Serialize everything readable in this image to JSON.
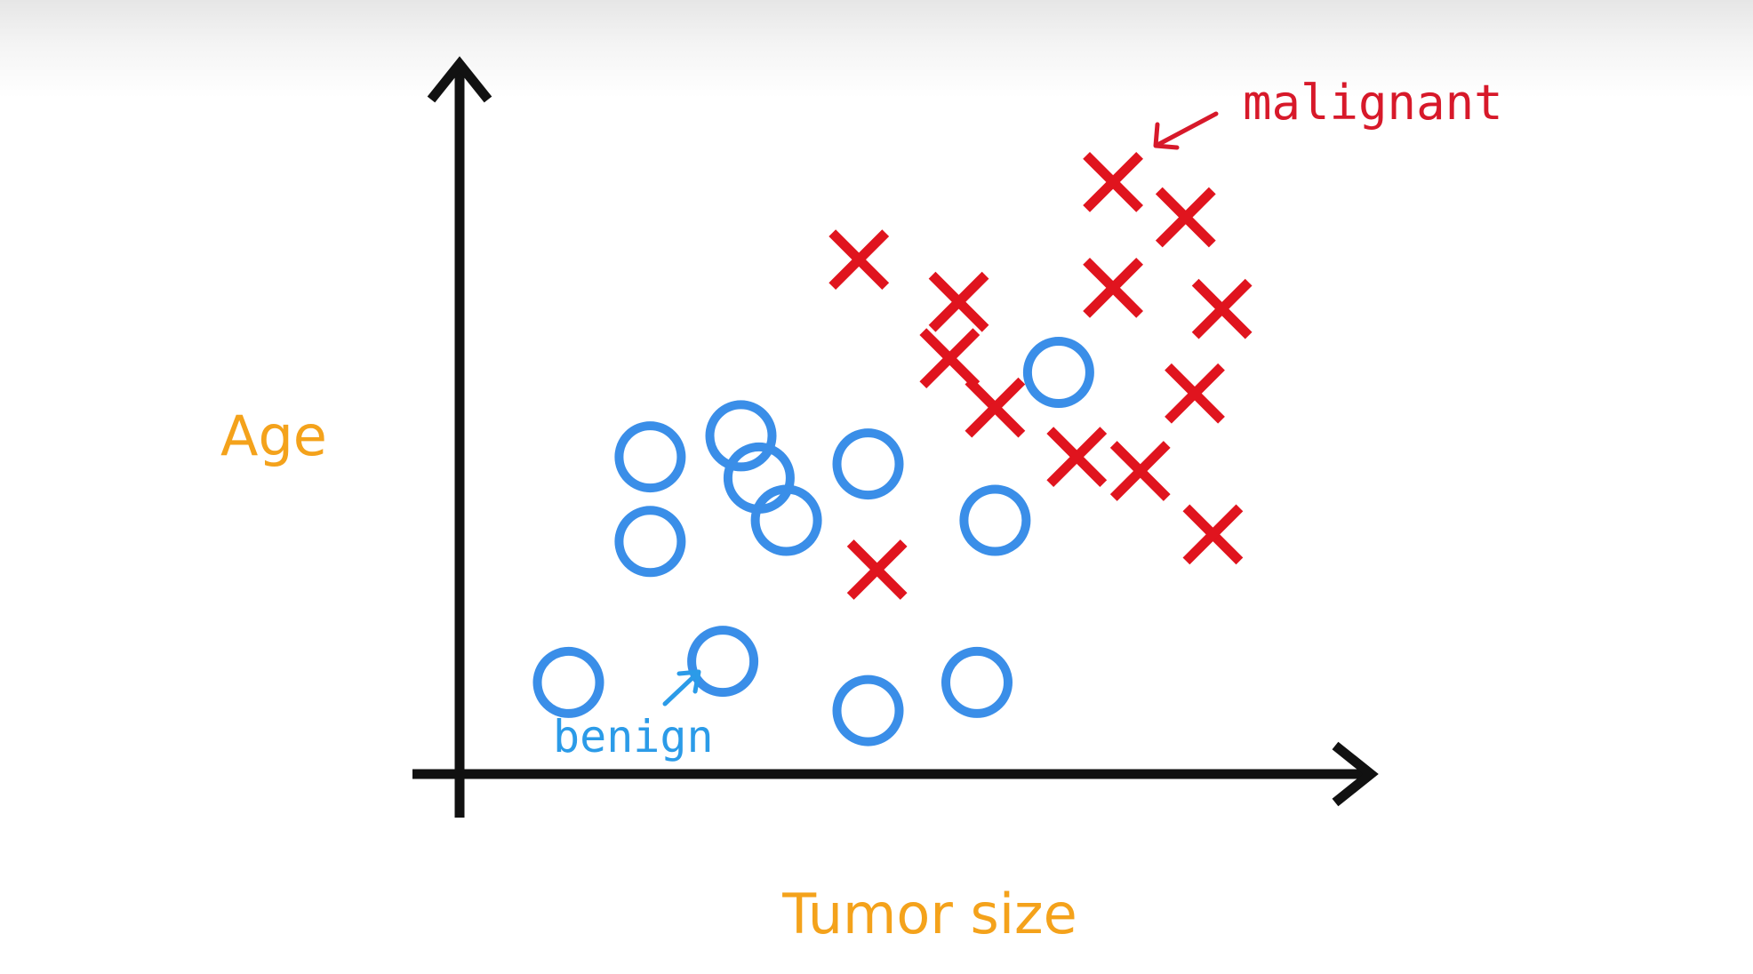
{
  "chart_data": {
    "type": "scatter",
    "title": "",
    "xlabel": "Tumor size",
    "ylabel": "Age",
    "xlim": [
      0,
      10
    ],
    "ylim": [
      0,
      10
    ],
    "grid": false,
    "series": [
      {
        "name": "benign",
        "marker": "circle",
        "color": "#3a8ee8",
        "x": [
          1.2,
          2.1,
          2.1,
          3.3,
          3.1,
          3.6,
          2.9,
          4.5,
          4.5,
          5.7,
          5.9,
          6.6
        ],
        "y": [
          1.3,
          3.3,
          4.5,
          4.2,
          4.8,
          3.6,
          1.6,
          4.4,
          0.9,
          1.3,
          3.6,
          5.7
        ]
      },
      {
        "name": "malignant",
        "marker": "x",
        "color": "#e0141e",
        "x": [
          4.4,
          5.5,
          5.4,
          5.9,
          7.2,
          7.2,
          8.0,
          8.4,
          8.1,
          6.8,
          7.5,
          8.3,
          4.6
        ],
        "y": [
          7.3,
          6.7,
          5.9,
          5.2,
          8.4,
          6.9,
          7.9,
          6.6,
          5.4,
          4.5,
          4.3,
          3.4,
          2.9
        ]
      }
    ],
    "annotations": [
      {
        "text": "malignant",
        "color": "#d7192a"
      },
      {
        "text": "benign",
        "color": "#2b9be8"
      }
    ]
  }
}
